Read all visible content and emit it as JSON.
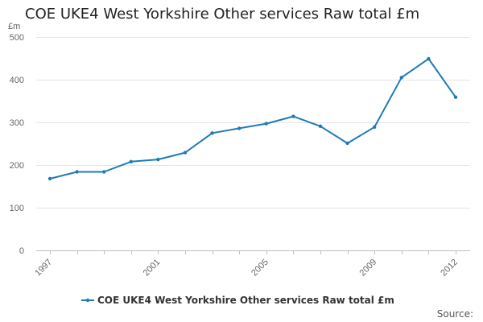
{
  "chart_data": {
    "type": "line",
    "title": "COE UKE4 West Yorkshire Other services Raw total £m",
    "ylabel": "£m",
    "xlabel": "",
    "ylim": [
      0,
      500
    ],
    "yticks": [
      0,
      100,
      200,
      300,
      400,
      500
    ],
    "xticks": [
      1997,
      2001,
      2005,
      2009,
      2012
    ],
    "grid": true,
    "legend_position": "bottom",
    "series": [
      {
        "name": "COE UKE4 West Yorkshire Other services Raw total £m",
        "color": "#1f7bb6",
        "x": [
          1997,
          1998,
          1999,
          2000,
          2001,
          2002,
          2003,
          2004,
          2005,
          2006,
          2007,
          2008,
          2009,
          2010,
          2011,
          2012
        ],
        "values": [
          168,
          184,
          184,
          208,
          213,
          229,
          275,
          286,
          297,
          314,
          291,
          251,
          289,
          405,
          449,
          359
        ]
      }
    ]
  },
  "source_label": "Source:"
}
